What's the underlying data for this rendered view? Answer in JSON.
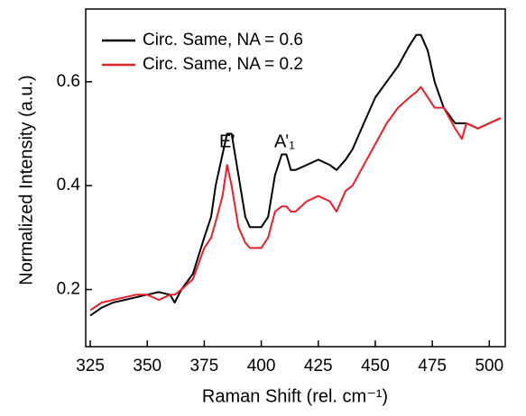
{
  "chart_data": {
    "type": "line",
    "x_label": "Raman Shift (rel. cm⁻¹)",
    "y_label": "Normalized Intensity (a.u.)",
    "annotations": [
      "E’",
      "A’₁"
    ],
    "x": [
      325,
      330,
      335,
      340,
      345,
      350,
      355,
      360,
      362,
      365,
      370,
      375,
      378,
      380,
      383,
      385,
      387,
      390,
      393,
      395,
      400,
      403,
      406,
      409,
      411,
      413,
      415,
      420,
      425,
      430,
      433,
      437,
      440,
      445,
      450,
      455,
      460,
      465,
      468,
      470,
      473,
      476,
      480,
      485,
      488,
      490,
      495,
      500,
      505
    ],
    "series": [
      {
        "name": "Circ. Same, NA = 0.6",
        "color": "#000000",
        "values": [
          0.15,
          0.165,
          0.175,
          0.18,
          0.185,
          0.19,
          0.195,
          0.19,
          0.175,
          0.2,
          0.23,
          0.3,
          0.34,
          0.4,
          0.46,
          0.5,
          0.5,
          0.42,
          0.34,
          0.32,
          0.32,
          0.34,
          0.42,
          0.46,
          0.46,
          0.43,
          0.43,
          0.44,
          0.45,
          0.44,
          0.43,
          0.45,
          0.47,
          0.52,
          0.57,
          0.6,
          0.63,
          0.67,
          0.69,
          0.69,
          0.66,
          0.6,
          0.55,
          0.52,
          0.52,
          0.52,
          0.51,
          0.52,
          0.53
        ]
      },
      {
        "name": "Circ. Same, NA = 0.2",
        "color": "#e8202a",
        "values": [
          0.16,
          0.175,
          0.18,
          0.185,
          0.19,
          0.19,
          0.18,
          0.19,
          0.19,
          0.2,
          0.22,
          0.28,
          0.3,
          0.33,
          0.38,
          0.44,
          0.4,
          0.32,
          0.29,
          0.28,
          0.28,
          0.3,
          0.35,
          0.36,
          0.36,
          0.35,
          0.35,
          0.37,
          0.38,
          0.37,
          0.35,
          0.39,
          0.4,
          0.44,
          0.48,
          0.52,
          0.55,
          0.57,
          0.58,
          0.59,
          0.57,
          0.55,
          0.55,
          0.51,
          0.49,
          0.52,
          0.51,
          0.52,
          0.53
        ]
      }
    ],
    "xlim": [
      323,
      507
    ],
    "xticks": [
      325,
      350,
      375,
      400,
      425,
      450,
      475,
      500
    ],
    "ylim": [
      0.09,
      0.74
    ],
    "yticks": [
      0.2,
      0.4,
      0.6
    ],
    "legend": "upper left"
  }
}
